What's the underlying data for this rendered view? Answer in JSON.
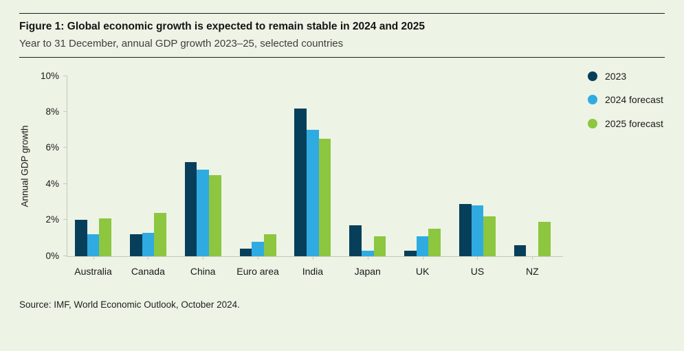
{
  "header": {
    "title": "Figure 1: Global economic growth is expected to remain stable in 2024 and 2025",
    "subtitle": "Year to 31 December, annual GDP growth 2023–25, selected countries"
  },
  "chart_data": {
    "type": "bar",
    "title": "Figure 1: Global economic growth is expected to remain stable in 2024 and 2025",
    "subtitle": "Year to 31 December, annual GDP growth 2023–25, selected countries",
    "categories": [
      "Australia",
      "Canada",
      "China",
      "Euro area",
      "India",
      "Japan",
      "UK",
      "US",
      "NZ"
    ],
    "series": [
      {
        "name": "2023",
        "color": "#073f5a",
        "values": [
          2.0,
          1.2,
          5.2,
          0.4,
          8.2,
          1.7,
          0.3,
          2.9,
          0.6
        ]
      },
      {
        "name": "2024 forecast",
        "color": "#2fabe2",
        "values": [
          1.2,
          1.3,
          4.8,
          0.8,
          7.0,
          0.3,
          1.1,
          2.8,
          0.0
        ]
      },
      {
        "name": "2025 forecast",
        "color": "#8dc63f",
        "values": [
          2.1,
          2.4,
          4.5,
          1.2,
          6.5,
          1.1,
          1.5,
          2.2,
          1.9
        ]
      }
    ],
    "xlabel": "",
    "ylabel": "Annual GDP growth",
    "ylim": [
      0,
      10
    ],
    "yticks": [
      0,
      2,
      4,
      6,
      8,
      10
    ],
    "ytick_labels": [
      "0%",
      "2%",
      "4%",
      "6%",
      "8%",
      "10%"
    ],
    "grid": false,
    "legend_position": "right"
  },
  "footer": {
    "source": "Source: IMF, World Economic Outlook, October 2024."
  },
  "colors": {
    "background": "#edf3e5",
    "rule": "#1d1d1d",
    "axis": "#c3c9ba",
    "text": "#191919"
  }
}
